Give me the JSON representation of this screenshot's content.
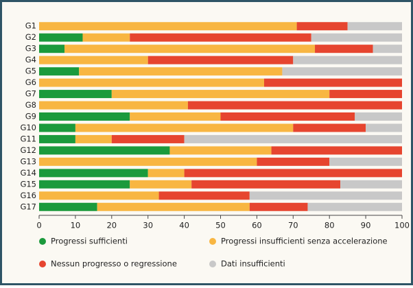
{
  "chart_data": {
    "type": "stacked-bar-horizontal",
    "categories": [
      "G1",
      "G2",
      "G3",
      "G4",
      "G5",
      "G6",
      "G7",
      "G8",
      "G9",
      "G10",
      "G11",
      "G12",
      "G13",
      "G14",
      "G15",
      "G16",
      "G17"
    ],
    "series": [
      {
        "name": "Progressi sufficienti",
        "color": "#1b9a3c",
        "values": [
          0,
          12,
          7,
          0,
          11,
          0,
          20,
          0,
          25,
          10,
          10,
          36,
          0,
          30,
          25,
          0,
          16
        ]
      },
      {
        "name": "Progressi insufficienti senza accelerazione",
        "color": "#f8b642",
        "values": [
          71,
          13,
          69,
          30,
          56,
          62,
          60,
          41,
          25,
          60,
          10,
          28,
          60,
          10,
          17,
          33,
          42
        ]
      },
      {
        "name": "Nessun progresso o regressione",
        "color": "#e6452f",
        "values": [
          14,
          50,
          16,
          40,
          0,
          38,
          20,
          59,
          37,
          20,
          20,
          36,
          20,
          60,
          41,
          25,
          16
        ]
      },
      {
        "name": "Dati insufficienti",
        "color": "#c8c8c8",
        "values": [
          15,
          25,
          8,
          30,
          33,
          0,
          0,
          0,
          13,
          10,
          60,
          0,
          20,
          0,
          17,
          42,
          26
        ]
      }
    ],
    "xlim": [
      0,
      100
    ],
    "xticks": [
      0,
      10,
      20,
      30,
      40,
      50,
      60,
      70,
      80,
      90,
      100
    ],
    "grid": false,
    "legend": "bottom"
  }
}
